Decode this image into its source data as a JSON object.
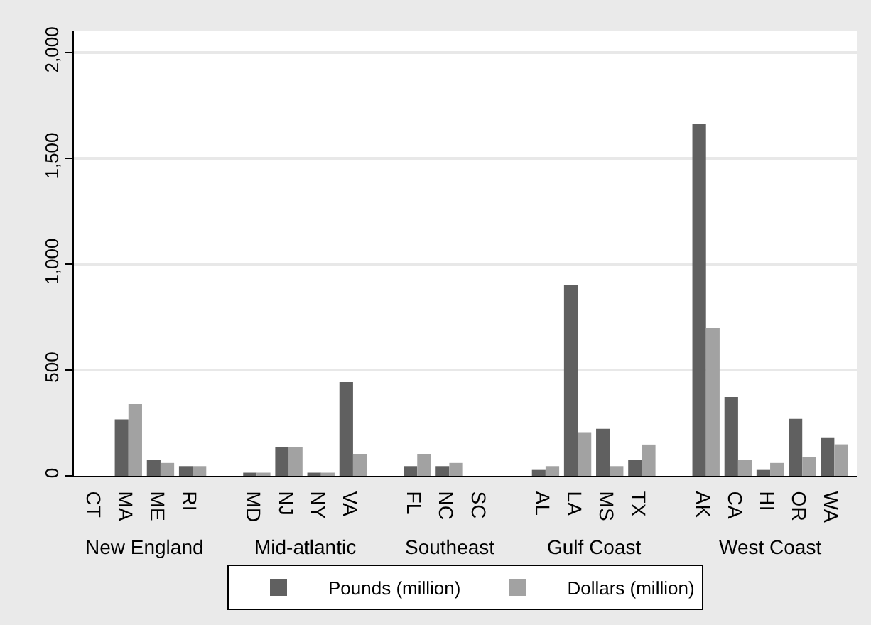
{
  "chart_data": {
    "type": "bar",
    "categories": [
      "CT",
      "MA",
      "ME",
      "RI",
      null,
      "MD",
      "NJ",
      "NY",
      "VA",
      null,
      "FL",
      "NC",
      "SC",
      null,
      "AL",
      "LA",
      "MS",
      "TX",
      null,
      "AK",
      "CA",
      "HI",
      "OR",
      "WA"
    ],
    "series": [
      {
        "name": "Pounds (million)",
        "color": "#606060",
        "values": [
          null,
          267,
          74,
          46,
          null,
          15,
          135,
          15,
          443,
          null,
          46,
          46,
          null,
          null,
          28,
          902,
          222,
          74,
          null,
          1664,
          372,
          28,
          269,
          179
        ]
      },
      {
        "name": "Dollars (million)",
        "color": "#a2a2a2",
        "values": [
          null,
          339,
          61,
          46,
          null,
          15,
          135,
          15,
          104,
          null,
          104,
          61,
          null,
          null,
          46,
          206,
          46,
          148,
          null,
          698,
          74,
          61,
          90,
          149
        ]
      }
    ],
    "annotations": [
      "New England",
      "Mid-atlantic",
      "Southeast",
      "Gulf Coast",
      "West Coast"
    ],
    "ylim": [
      0,
      2100
    ],
    "yticks": [
      0,
      {
        "value": 500,
        "label": "500"
      },
      {
        "value": 1000,
        "label": "1,000"
      },
      {
        "value": 1500,
        "label": "1,500"
      },
      {
        "value": 2000,
        "label": "2,000"
      }
    ],
    "grid": "y",
    "legend": "bottom"
  }
}
